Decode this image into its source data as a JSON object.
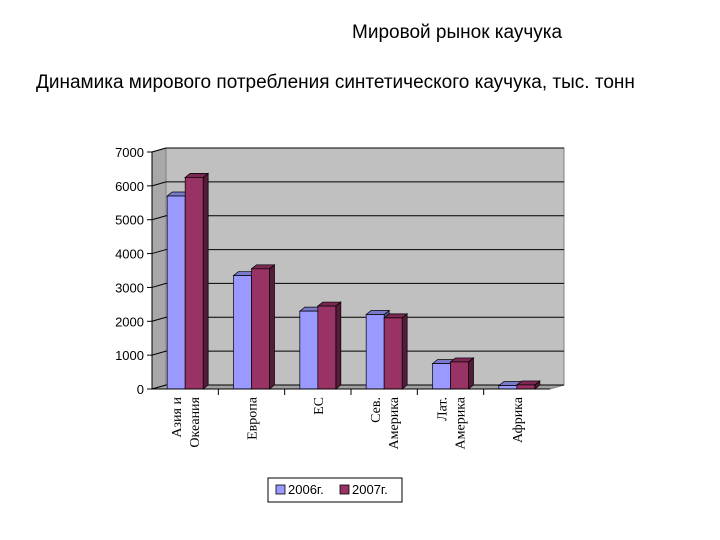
{
  "slide": {
    "title": "Мировой рынок каучука",
    "subtitle": "Динамика мирового потребления синтетического каучука, тыс. тонн"
  },
  "colors": {
    "series_2006": "#9999ff",
    "series_2007": "#993366",
    "plot_background": "#c0c0c0",
    "gridline": "#000000"
  },
  "chart_data": {
    "type": "bar",
    "title": "",
    "xlabel": "",
    "ylabel": "",
    "ylim": [
      0,
      7000
    ],
    "yticks": [
      0,
      1000,
      2000,
      3000,
      4000,
      5000,
      6000,
      7000
    ],
    "grid": true,
    "style": "3d-clustered",
    "legend_position": "bottom",
    "categories": [
      [
        "Азия и",
        "Океания"
      ],
      [
        "Европа"
      ],
      [
        "ЕС"
      ],
      [
        "Сев.",
        "Америка"
      ],
      [
        "Лат.",
        "Америка"
      ],
      [
        "Африка"
      ]
    ],
    "series": [
      {
        "name": "2006г.",
        "values": [
          5700,
          3350,
          2300,
          2200,
          750,
          100
        ]
      },
      {
        "name": "2007г.",
        "values": [
          6250,
          3550,
          2450,
          2100,
          800,
          120
        ]
      }
    ]
  }
}
